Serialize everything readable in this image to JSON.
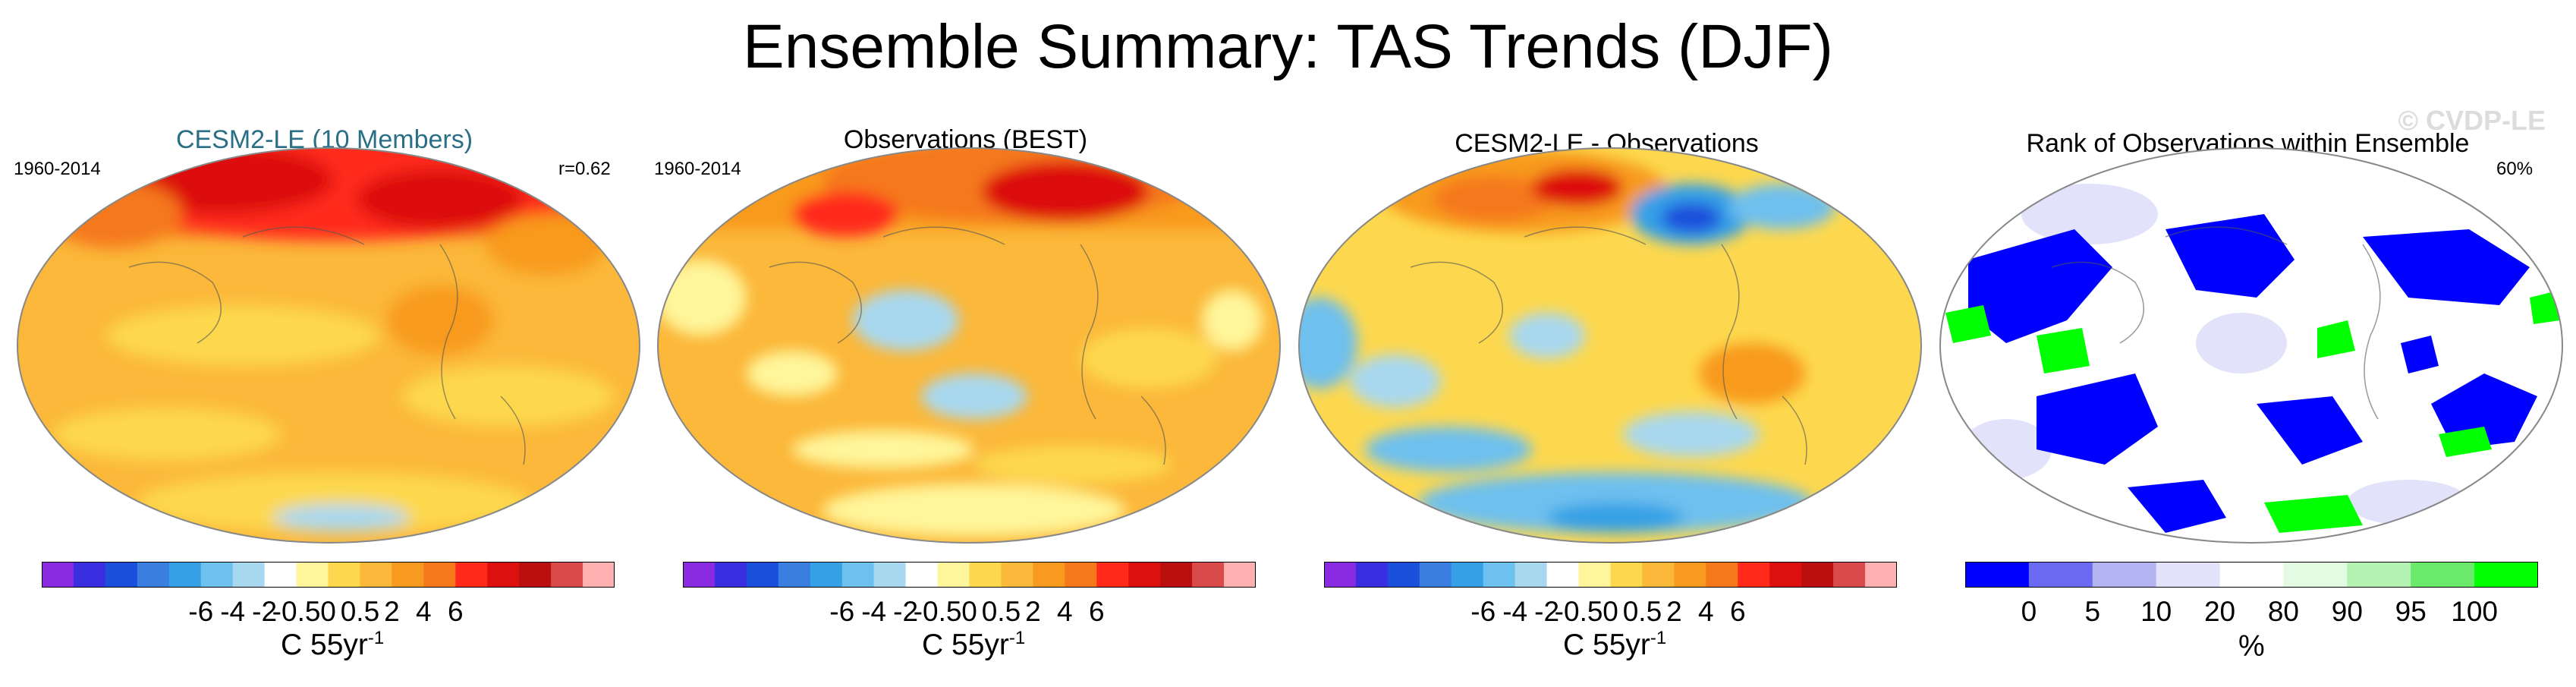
{
  "page": {
    "title": "Ensemble Summary: TAS Trends (DJF)",
    "watermark": "© CVDP-LE"
  },
  "panels": [
    {
      "id": "cesm",
      "title": "CESM2-LE (10 Members)",
      "left_label": "1960-2014",
      "right_label": "r=0.62",
      "colorbar": {
        "labels": [
          "-6",
          "-4",
          "-2",
          "-0.5",
          "0",
          "0.5",
          "2",
          "4",
          "6"
        ],
        "colors": [
          "#8a2be2",
          "#3a2fe0",
          "#1b50dc",
          "#3a7fe0",
          "#36a0e6",
          "#6ec0ee",
          "#a8d8f0",
          "#ffffff",
          "#fff59a",
          "#fdd84e",
          "#fbb83a",
          "#f89a1f",
          "#f5781a",
          "#ff2a1a",
          "#dd1010",
          "#bb0e0e",
          "#d94a4a",
          "#ffb0b0"
        ]
      },
      "unit": "C 55yr",
      "unit_sup": "-1"
    },
    {
      "id": "obs",
      "title": "Observations (BEST)",
      "left_label": "1960-2014",
      "right_label": "",
      "colorbar": {
        "labels": [
          "-6",
          "-4",
          "-2",
          "-0.5",
          "0",
          "0.5",
          "2",
          "4",
          "6"
        ],
        "colors": [
          "#8a2be2",
          "#3a2fe0",
          "#1b50dc",
          "#3a7fe0",
          "#36a0e6",
          "#6ec0ee",
          "#a8d8f0",
          "#ffffff",
          "#fff59a",
          "#fdd84e",
          "#fbb83a",
          "#f89a1f",
          "#f5781a",
          "#ff2a1a",
          "#dd1010",
          "#bb0e0e",
          "#d94a4a",
          "#ffb0b0"
        ]
      },
      "unit": "C 55yr",
      "unit_sup": "-1"
    },
    {
      "id": "diff",
      "title": "CESM2-LE - Observations",
      "left_label": "",
      "right_label": "",
      "colorbar": {
        "labels": [
          "-6",
          "-4",
          "-2",
          "-0.5",
          "0",
          "0.5",
          "2",
          "4",
          "6"
        ],
        "colors": [
          "#8a2be2",
          "#3a2fe0",
          "#1b50dc",
          "#3a7fe0",
          "#36a0e6",
          "#6ec0ee",
          "#a8d8f0",
          "#ffffff",
          "#fff59a",
          "#fdd84e",
          "#fbb83a",
          "#f89a1f",
          "#f5781a",
          "#ff2a1a",
          "#dd1010",
          "#bb0e0e",
          "#d94a4a",
          "#ffb0b0"
        ]
      },
      "unit": "C 55yr",
      "unit_sup": "-1"
    },
    {
      "id": "rank",
      "title": "Rank of Observations within Ensemble",
      "left_label": "",
      "right_label": "60%",
      "colorbar": {
        "labels": [
          "0",
          "5",
          "10",
          "20",
          "80",
          "90",
          "95",
          "100"
        ],
        "colors": [
          "#0000ff",
          "#6a6af2",
          "#b4b4f2",
          "#e2e2fb",
          "#ffffff",
          "#e2fbe2",
          "#b4f2b4",
          "#6aea6a",
          "#00ff00"
        ]
      },
      "unit": "%",
      "unit_sup": ""
    }
  ],
  "chart_data": [
    {
      "type": "heatmap",
      "title": "CESM2-LE (10 Members)",
      "period": "1960-2014",
      "pattern_correlation": 0.62,
      "variable": "TAS trend, DJF",
      "units": "C 55yr-1",
      "color_levels": [
        -6,
        -4,
        -2,
        -0.5,
        0,
        0.5,
        2,
        4,
        6
      ],
      "summary": {
        "northern_high_latitudes": "4 to 8",
        "tropics_and_oceans": "0.5 to 2",
        "southern_ocean": "0 to 0.5"
      }
    },
    {
      "type": "heatmap",
      "title": "Observations (BEST)",
      "period": "1960-2014",
      "variable": "TAS trend, DJF",
      "units": "C 55yr-1",
      "color_levels": [
        -6,
        -4,
        -2,
        -0.5,
        0,
        0.5,
        2,
        4,
        6
      ],
      "summary": {
        "siberia_arctic": "4 to 8",
        "north_pacific": "-0.5 to 0",
        "elsewhere": "0.5 to 2"
      }
    },
    {
      "type": "heatmap",
      "title": "CESM2-LE - Observations",
      "variable": "TAS trend difference, DJF",
      "units": "C 55yr-1",
      "color_levels": [
        -6,
        -4,
        -2,
        -0.5,
        0,
        0.5,
        2,
        4,
        6
      ],
      "summary": {
        "arctic_greenland": "2 to 6",
        "siberia": "-4 to -2",
        "southern_ocean_bands": "-2 to -0.5",
        "elsewhere": "0 to 2"
      }
    },
    {
      "type": "heatmap",
      "title": "Rank of Observations within Ensemble",
      "variable": "percentile rank",
      "units": "%",
      "color_levels": [
        0,
        5,
        10,
        20,
        80,
        90,
        95,
        100
      ],
      "area_within_range_percent": 60,
      "summary": {
        "blue_regions": "0 to 5",
        "green_regions": "95 to 100",
        "white": "20 to 80"
      }
    }
  ]
}
